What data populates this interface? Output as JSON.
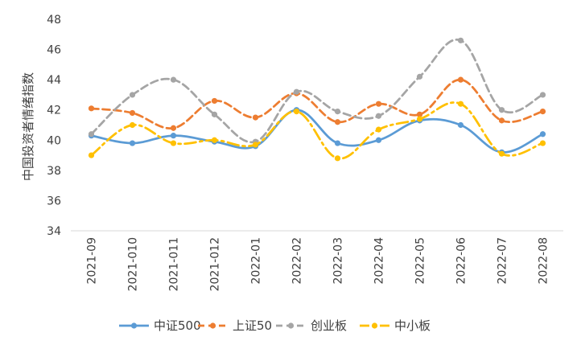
{
  "chart_data": {
    "type": "line",
    "title": "",
    "xlabel": "",
    "ylabel": "中国投资者情绪指数",
    "ylim": [
      34,
      48
    ],
    "yticks": [
      34,
      36,
      38,
      40,
      42,
      44,
      46,
      48
    ],
    "grid": false,
    "legend_position": "bottom",
    "categories": [
      "2021-09",
      "2021-010",
      "2021-011",
      "2021-012",
      "2022-01",
      "2022-02",
      "2022-03",
      "2022-04",
      "2022-05",
      "2022-06",
      "2022-07",
      "2022-08"
    ],
    "series": [
      {
        "name": "中证500",
        "color": "#5B9BD5",
        "dash": "solid",
        "values": [
          40.3,
          39.8,
          40.3,
          39.9,
          39.6,
          42.0,
          39.8,
          40.0,
          41.3,
          41.0,
          39.2,
          40.4
        ]
      },
      {
        "name": "上证50",
        "color": "#ED7D31",
        "dash": "dash",
        "values": [
          42.1,
          41.8,
          40.8,
          42.6,
          41.5,
          43.1,
          41.2,
          42.4,
          41.7,
          44.0,
          41.3,
          41.9
        ]
      },
      {
        "name": "创业板",
        "color": "#A5A5A5",
        "dash": "dash",
        "values": [
          40.4,
          43.0,
          44.0,
          41.7,
          39.9,
          43.2,
          41.9,
          41.6,
          44.2,
          46.6,
          42.0,
          43.0
        ]
      },
      {
        "name": "中小板",
        "color": "#FFC000",
        "dash": "dashdot",
        "values": [
          39.0,
          41.0,
          39.8,
          40.0,
          39.7,
          41.9,
          38.8,
          40.7,
          41.4,
          42.4,
          39.1,
          39.8
        ]
      }
    ]
  }
}
